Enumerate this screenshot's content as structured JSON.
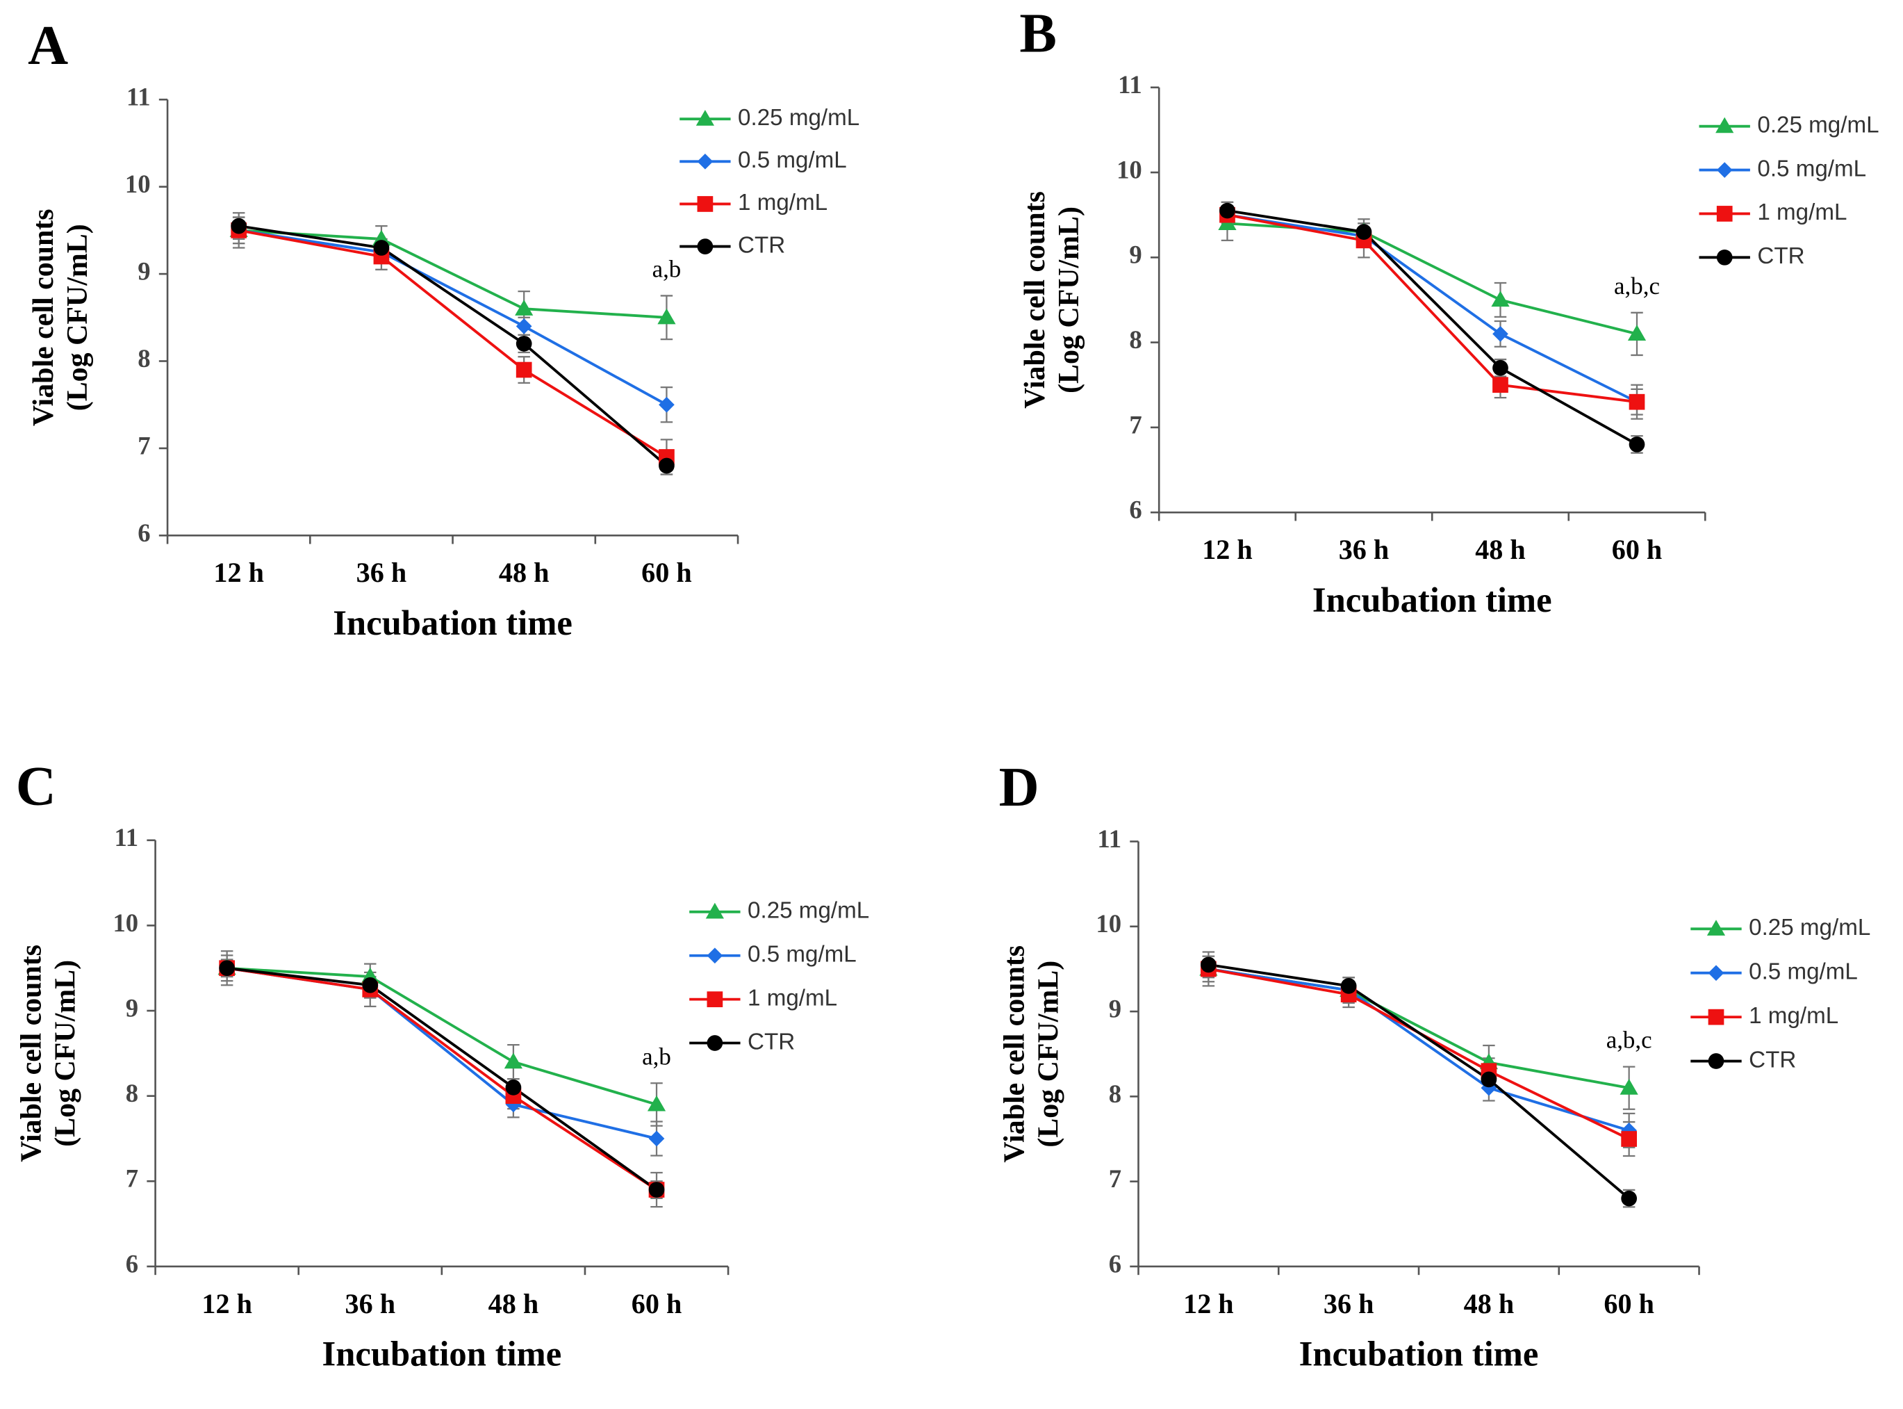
{
  "chart_data": [
    {
      "type": "line",
      "panel": "A",
      "categories": [
        "12 h",
        "36 h",
        "48 h",
        "60 h"
      ],
      "xlabel": "Incubation time",
      "ylabel": [
        "Viable cell counts",
        "(Log CFU/mL)"
      ],
      "ylim": [
        6,
        11
      ],
      "yticks": [
        6,
        7,
        8,
        9,
        10,
        11
      ],
      "annotation": "a,b",
      "legend": "top-right",
      "series": [
        {
          "name": "0.25 mg/mL",
          "color": "#22b14c",
          "marker": "triangle",
          "values": [
            9.5,
            9.4,
            8.6,
            8.5
          ],
          "errors": [
            0.15,
            0.15,
            0.2,
            0.25
          ]
        },
        {
          "name": "0.5 mg/mL",
          "color": "#1f6fe5",
          "marker": "diamond",
          "values": [
            9.5,
            9.25,
            8.4,
            7.5
          ],
          "errors": [
            0.1,
            0.1,
            0.1,
            0.2
          ]
        },
        {
          "name": "1 mg/mL",
          "color": "#ee1111",
          "marker": "square",
          "values": [
            9.5,
            9.2,
            7.9,
            6.9
          ],
          "errors": [
            0.2,
            0.15,
            0.15,
            0.2
          ]
        },
        {
          "name": "CTR",
          "color": "#000000",
          "marker": "circle",
          "values": [
            9.55,
            9.3,
            8.2,
            6.8
          ],
          "errors": [
            0.1,
            0.1,
            0.1,
            0.1
          ]
        }
      ]
    },
    {
      "type": "line",
      "panel": "B",
      "categories": [
        "12 h",
        "36 h",
        "48 h",
        "60 h"
      ],
      "xlabel": "Incubation time",
      "ylabel": [
        "Viable cell counts",
        "(Log CFU/mL)"
      ],
      "ylim": [
        6,
        11
      ],
      "yticks": [
        6,
        7,
        8,
        9,
        10,
        11
      ],
      "annotation": "a,b,c",
      "legend": "top-right",
      "series": [
        {
          "name": "0.25 mg/mL",
          "color": "#22b14c",
          "marker": "triangle",
          "values": [
            9.4,
            9.3,
            8.5,
            8.1
          ],
          "errors": [
            0.2,
            0.15,
            0.2,
            0.25
          ]
        },
        {
          "name": "0.5 mg/mL",
          "color": "#1f6fe5",
          "marker": "diamond",
          "values": [
            9.5,
            9.25,
            8.1,
            7.3
          ],
          "errors": [
            0.1,
            0.1,
            0.15,
            0.15
          ]
        },
        {
          "name": "1 mg/mL",
          "color": "#ee1111",
          "marker": "square",
          "values": [
            9.5,
            9.2,
            7.5,
            7.3
          ],
          "errors": [
            0.15,
            0.2,
            0.15,
            0.2
          ]
        },
        {
          "name": "CTR",
          "color": "#000000",
          "marker": "circle",
          "values": [
            9.55,
            9.3,
            7.7,
            6.8
          ],
          "errors": [
            0.1,
            0.1,
            0.1,
            0.1
          ]
        }
      ]
    },
    {
      "type": "line",
      "panel": "C",
      "categories": [
        "12 h",
        "36 h",
        "48 h",
        "60 h"
      ],
      "xlabel": "Incubation time",
      "ylabel": [
        "Viable cell counts",
        "(Log CFU/mL)"
      ],
      "ylim": [
        6,
        11
      ],
      "yticks": [
        6,
        7,
        8,
        9,
        10,
        11
      ],
      "annotation": "a,b",
      "legend": "top-right",
      "series": [
        {
          "name": "0.25 mg/mL",
          "color": "#22b14c",
          "marker": "triangle",
          "values": [
            9.5,
            9.4,
            8.4,
            7.9
          ],
          "errors": [
            0.15,
            0.15,
            0.2,
            0.25
          ]
        },
        {
          "name": "0.5 mg/mL",
          "color": "#1f6fe5",
          "marker": "diamond",
          "values": [
            9.5,
            9.25,
            7.9,
            7.5
          ],
          "errors": [
            0.1,
            0.1,
            0.15,
            0.2
          ]
        },
        {
          "name": "1 mg/mL",
          "color": "#ee1111",
          "marker": "square",
          "values": [
            9.5,
            9.25,
            8.0,
            6.9
          ],
          "errors": [
            0.2,
            0.2,
            0.15,
            0.2
          ]
        },
        {
          "name": "CTR",
          "color": "#000000",
          "marker": "circle",
          "values": [
            9.5,
            9.3,
            8.1,
            6.9
          ],
          "errors": [
            0.1,
            0.1,
            0.1,
            0.1
          ]
        }
      ]
    },
    {
      "type": "line",
      "panel": "D",
      "categories": [
        "12 h",
        "36 h",
        "48 h",
        "60 h"
      ],
      "xlabel": "Incubation time",
      "ylabel": [
        "Viable cell counts",
        "(Log CFU/mL)"
      ],
      "ylim": [
        6,
        11
      ],
      "yticks": [
        6,
        7,
        8,
        9,
        10,
        11
      ],
      "annotation": "a,b,c",
      "legend": "top-right",
      "series": [
        {
          "name": "0.25 mg/mL",
          "color": "#22b14c",
          "marker": "triangle",
          "values": [
            9.5,
            9.25,
            8.4,
            8.1
          ],
          "errors": [
            0.15,
            0.15,
            0.2,
            0.25
          ]
        },
        {
          "name": "0.5 mg/mL",
          "color": "#1f6fe5",
          "marker": "diamond",
          "values": [
            9.5,
            9.25,
            8.1,
            7.6
          ],
          "errors": [
            0.1,
            0.1,
            0.15,
            0.2
          ]
        },
        {
          "name": "1 mg/mL",
          "color": "#ee1111",
          "marker": "square",
          "values": [
            9.5,
            9.2,
            8.3,
            7.5
          ],
          "errors": [
            0.2,
            0.15,
            0.15,
            0.2
          ]
        },
        {
          "name": "CTR",
          "color": "#000000",
          "marker": "circle",
          "values": [
            9.55,
            9.3,
            8.2,
            6.8
          ],
          "errors": [
            0.1,
            0.1,
            0.1,
            0.1
          ]
        }
      ]
    }
  ]
}
